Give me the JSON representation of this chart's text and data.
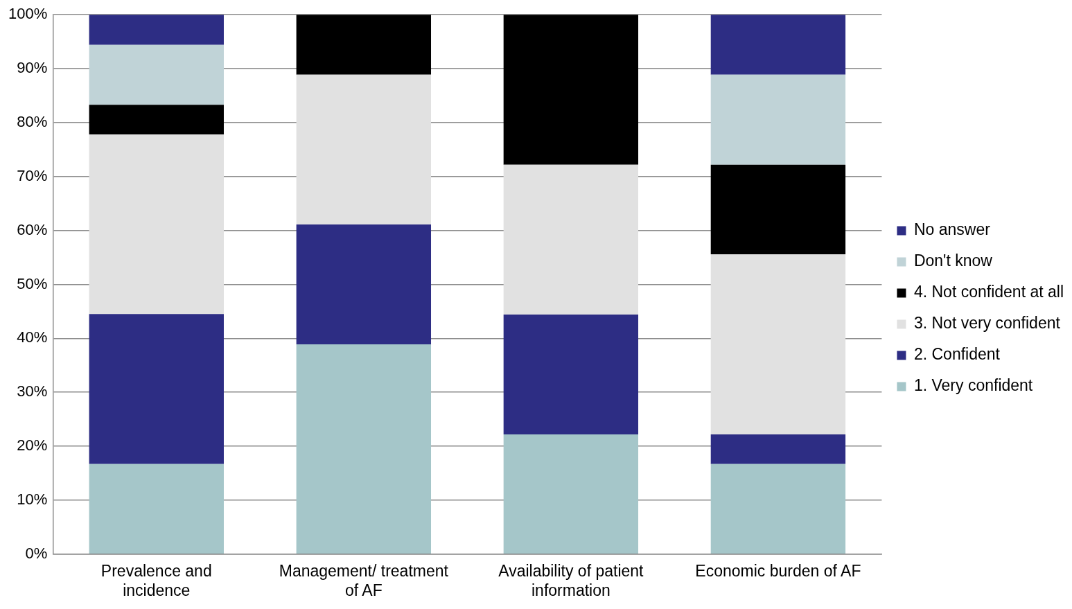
{
  "chart_data": {
    "type": "bar",
    "stacked": true,
    "categories": [
      "Prevalence and incidence",
      "Management/ treatment of AF",
      "Availability of patient information",
      "Economic burden of AF"
    ],
    "series": [
      {
        "name": "1. Very confident",
        "color": "#a5c6c9",
        "values": [
          16.7,
          38.9,
          22.2,
          16.7
        ]
      },
      {
        "name": "2. Confident",
        "color": "#2d2d84",
        "values": [
          27.8,
          22.2,
          22.2,
          5.5
        ]
      },
      {
        "name": "3. Not very confident",
        "color": "#e1e1e1",
        "values": [
          33.3,
          27.8,
          27.8,
          33.4
        ]
      },
      {
        "name": "4. Not confident at all",
        "color": "#000000",
        "values": [
          5.5,
          11.1,
          27.8,
          16.6
        ]
      },
      {
        "name": "Don't know",
        "color": "#c0d3d7",
        "values": [
          11.1,
          0,
          0,
          16.7
        ]
      },
      {
        "name": "No answer",
        "color": "#2d2d84",
        "values": [
          5.6,
          0,
          0,
          11.1
        ]
      }
    ],
    "ylim": [
      0,
      100
    ],
    "yticks": [
      {
        "value": 0,
        "label": "0%"
      },
      {
        "value": 10,
        "label": "10%"
      },
      {
        "value": 20,
        "label": "20%"
      },
      {
        "value": 30,
        "label": "30%"
      },
      {
        "value": 40,
        "label": "40%"
      },
      {
        "value": 50,
        "label": "50%"
      },
      {
        "value": 60,
        "label": "60%"
      },
      {
        "value": 70,
        "label": "70%"
      },
      {
        "value": 80,
        "label": "80%"
      },
      {
        "value": 90,
        "label": "90%"
      },
      {
        "value": 100,
        "label": "100%"
      }
    ],
    "grid": "y",
    "legend": "right"
  }
}
